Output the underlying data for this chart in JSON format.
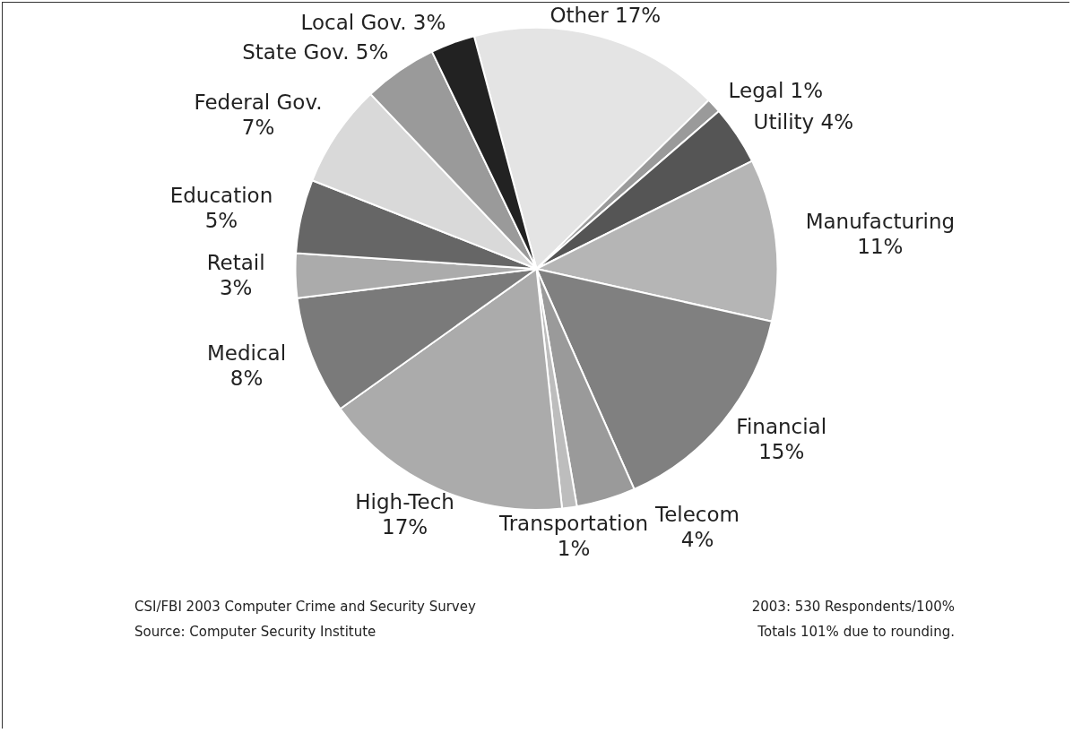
{
  "chart_data": {
    "type": "pie",
    "categories": [
      "Other",
      "Legal",
      "Utility",
      "Manufacturing",
      "Financial",
      "Telecom",
      "Transportation",
      "High-Tech",
      "Medical",
      "Retail",
      "Education",
      "Federal Gov.",
      "State Gov.",
      "Local Gov."
    ],
    "values": [
      17,
      1,
      4,
      11,
      15,
      4,
      1,
      17,
      8,
      3,
      5,
      7,
      5,
      3
    ],
    "colors": [
      "#e4e4e4",
      "#9a9a9a",
      "#555555",
      "#b5b5b5",
      "#808080",
      "#9a9a9a",
      "#bdbdbd",
      "#ababab",
      "#7a7a7a",
      "#ababab",
      "#666666",
      "#d9d9d9",
      "#9a9a9a",
      "#222222"
    ],
    "value_labels": [
      "17%",
      "1%",
      "4%",
      "11%",
      "15%",
      "4%",
      "1%",
      "17%",
      "8%",
      "3%",
      "5%",
      "7%",
      "5%",
      "3%"
    ],
    "legend": false,
    "annotations": [
      "CSI/FBI 2003 Computer Crime and Security Survey",
      "Source: Computer Security Institute",
      "2003: 530 Respondents/100%",
      "Totals 101% due to rounding."
    ]
  }
}
